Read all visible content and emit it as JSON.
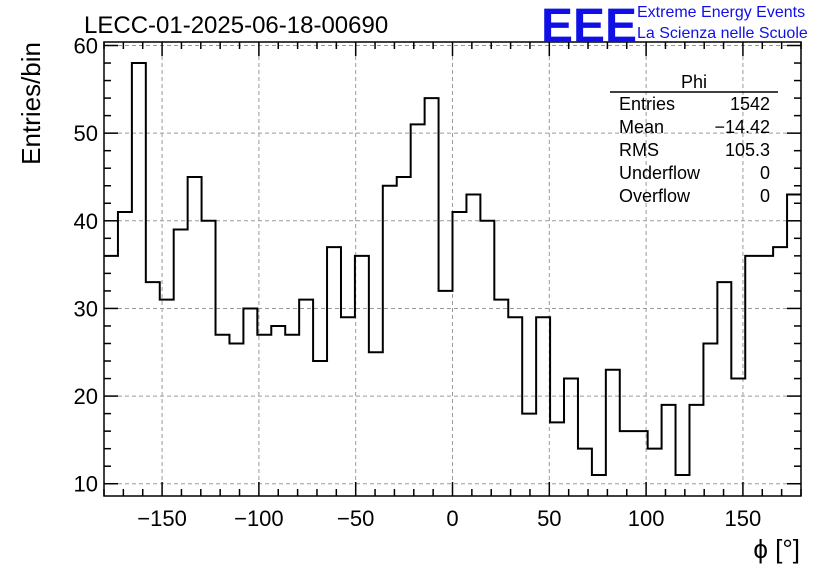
{
  "chart_data": {
    "type": "bar",
    "title": "LECC-01-2025-06-18-00690",
    "xlabel": "ϕ [°]",
    "ylabel": "Entries/bin",
    "xlim": [
      -180,
      180
    ],
    "ylim": [
      8.6,
      60.4
    ],
    "bin_width": 7.2,
    "x_ticks": [
      -150,
      -100,
      -50,
      0,
      50,
      100,
      150
    ],
    "x_tick_labels": [
      "−150",
      "−100",
      "−50",
      "0",
      "50",
      "100",
      "150"
    ],
    "y_ticks": [
      10,
      20,
      30,
      40,
      50,
      60
    ],
    "y_tick_labels": [
      "10",
      "20",
      "30",
      "40",
      "50",
      "60"
    ],
    "grid": true,
    "values": [
      36,
      41,
      58,
      33,
      31,
      39,
      45,
      40,
      27,
      26,
      30,
      27,
      28,
      27,
      31,
      24,
      37,
      29,
      36,
      25,
      44,
      45,
      51,
      54,
      32,
      41,
      43,
      40,
      31,
      29,
      18,
      29,
      17,
      22,
      14,
      11,
      23,
      16,
      16,
      14,
      19,
      11,
      19,
      26,
      33,
      22,
      36,
      36,
      37,
      43
    ],
    "legend": {
      "name": "Phi",
      "rows": [
        {
          "label": "Entries",
          "value": "1542"
        },
        {
          "label": "Mean",
          "value": "−14.42"
        },
        {
          "label": "RMS",
          "value": "105.3"
        },
        {
          "label": "Underflow",
          "value": "0"
        },
        {
          "label": "Overflow",
          "value": "0"
        }
      ],
      "placement": "top-right"
    }
  },
  "logo": {
    "mark": "EEE",
    "line1": "Extreme Energy Events",
    "line2": "La Scienza nelle Scuole",
    "color": "#1010e6"
  }
}
